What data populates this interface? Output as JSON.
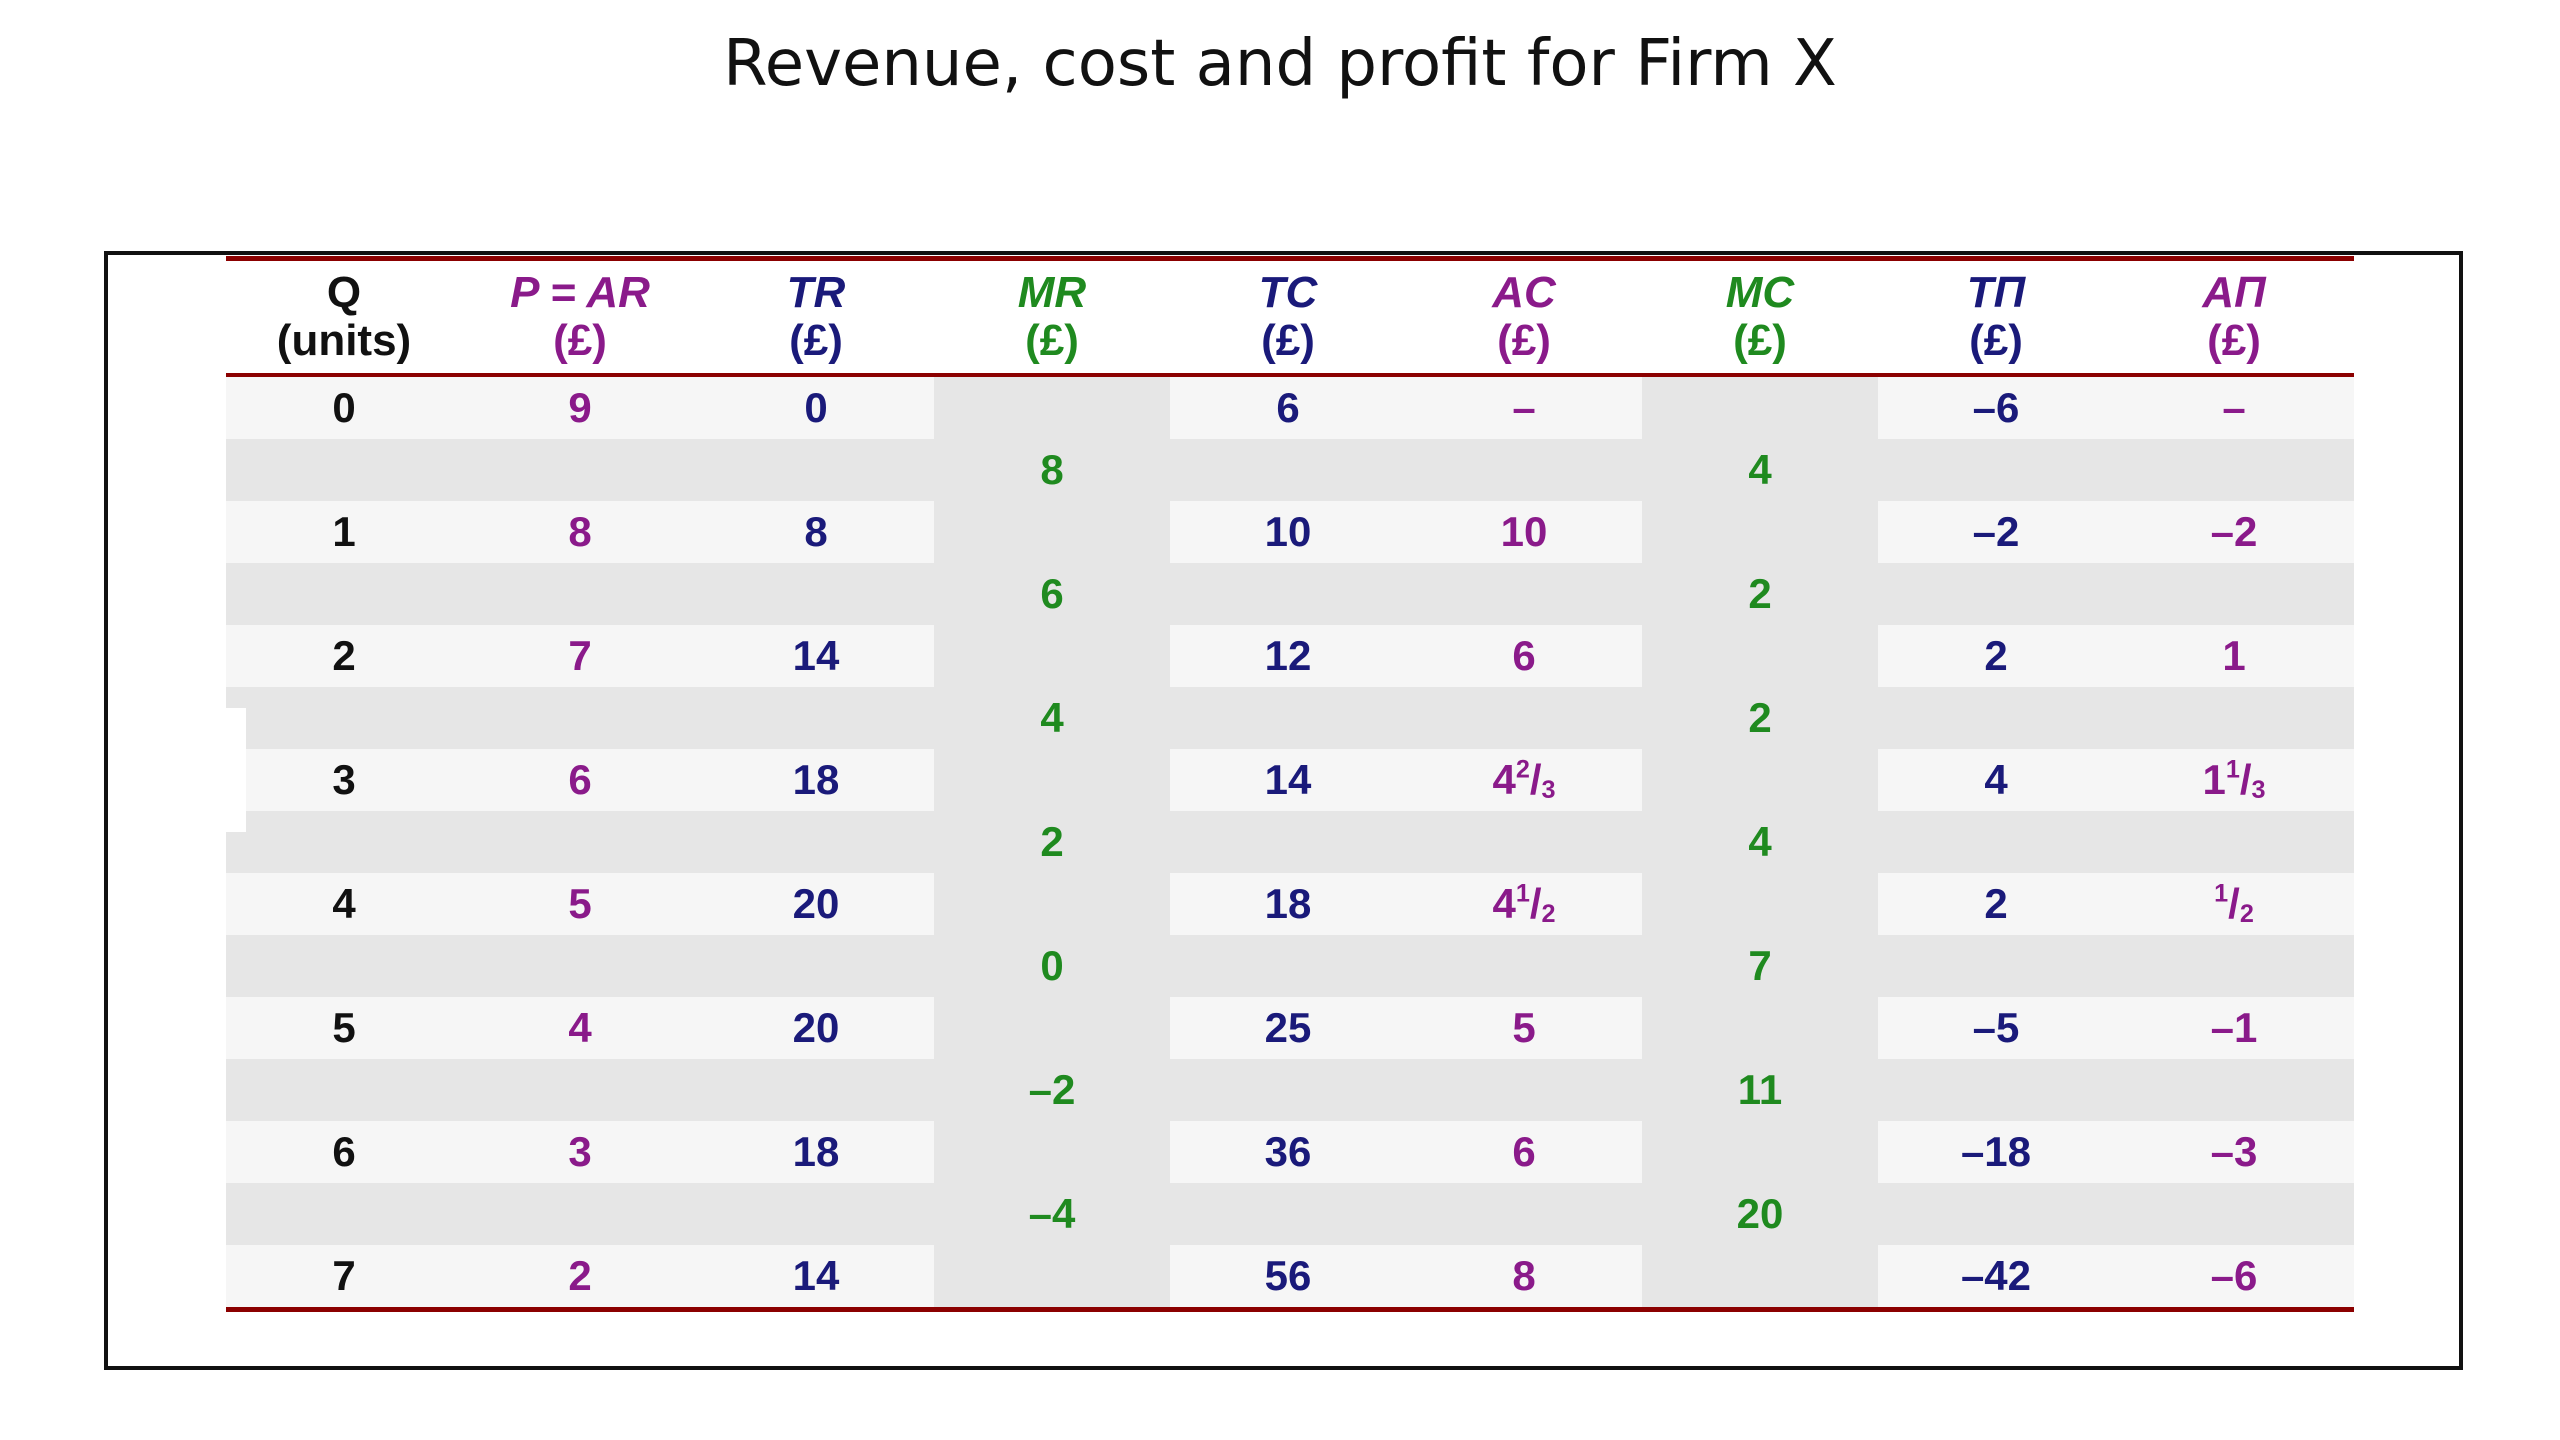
{
  "title": "Revenue, cost and profit for Firm X",
  "colors": {
    "rule": "#8b0000",
    "navy": "#1a1a7a",
    "purple": "#8a1a8a",
    "green": "#1f8a1f",
    "black": "#111111"
  },
  "table": {
    "headers": [
      {
        "symbol": "Q",
        "unit": "(units)",
        "color": "black"
      },
      {
        "symbol": "P = AR",
        "unit": "(£)",
        "color": "purple"
      },
      {
        "symbol": "TR",
        "unit": "(£)",
        "color": "navy"
      },
      {
        "symbol": "MR",
        "unit": "(£)",
        "color": "green"
      },
      {
        "symbol": "TC",
        "unit": "(£)",
        "color": "navy"
      },
      {
        "symbol": "AC",
        "unit": "(£)",
        "color": "purple"
      },
      {
        "symbol": "MC",
        "unit": "(£)",
        "color": "green"
      },
      {
        "symbol": "TΠ",
        "unit": "(£)",
        "color": "navy"
      },
      {
        "symbol": "AΠ",
        "unit": "(£)",
        "color": "purple"
      }
    ],
    "rows": [
      {
        "q": "0",
        "p": "9",
        "tr": "0",
        "tc": "6",
        "ac": "–",
        "tp": "–6",
        "ap": "–"
      },
      {
        "mr": "8",
        "mc": "4"
      },
      {
        "q": "1",
        "p": "8",
        "tr": "8",
        "tc": "10",
        "ac": "10",
        "tp": "–2",
        "ap": "–2"
      },
      {
        "mr": "6",
        "mc": "2"
      },
      {
        "q": "2",
        "p": "7",
        "tr": "14",
        "tc": "12",
        "ac": "6",
        "tp": "2",
        "ap": "1"
      },
      {
        "mr": "4",
        "mc": "2"
      },
      {
        "q": "3",
        "p": "6",
        "tr": "18",
        "tc": "14",
        "ac": {
          "whole": "4",
          "num": "2",
          "den": "3"
        },
        "tp": "4",
        "ap": {
          "whole": "1",
          "num": "1",
          "den": "3"
        }
      },
      {
        "mr": "2",
        "mc": "4"
      },
      {
        "q": "4",
        "p": "5",
        "tr": "20",
        "tc": "18",
        "ac": {
          "whole": "4",
          "num": "1",
          "den": "2"
        },
        "tp": "2",
        "ap": {
          "whole": "",
          "num": "1",
          "den": "2"
        }
      },
      {
        "mr": "0",
        "mc": "7"
      },
      {
        "q": "5",
        "p": "4",
        "tr": "20",
        "tc": "25",
        "ac": "5",
        "tp": "–5",
        "ap": "–1"
      },
      {
        "mr": "–2",
        "mc": "11"
      },
      {
        "q": "6",
        "p": "3",
        "tr": "18",
        "tc": "36",
        "ac": "6",
        "tp": "–18",
        "ap": "–3"
      },
      {
        "mr": "–4",
        "mc": "20"
      },
      {
        "q": "7",
        "p": "2",
        "tr": "14",
        "tc": "56",
        "ac": "8",
        "tp": "–42",
        "ap": "–6"
      }
    ]
  }
}
